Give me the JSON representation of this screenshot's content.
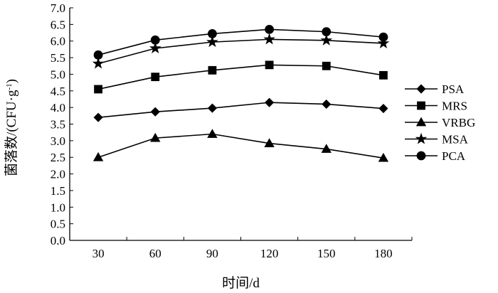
{
  "chart_data": {
    "type": "line",
    "title": "",
    "xlabel": "时间/d",
    "ylabel": "菌落数/(CFU·g⁻¹)",
    "ylabel_parts": {
      "main": "菌落数/(CFU·g",
      "sup": "-1",
      "tail": ")"
    },
    "x": [
      30,
      60,
      90,
      120,
      150,
      180
    ],
    "x_tick_labels": [
      "30",
      "60",
      "90",
      "120",
      "150",
      "180"
    ],
    "ylim": [
      0,
      7.0
    ],
    "y_tick_labels": [
      "0.0",
      "0.5",
      "1.0",
      "1.5",
      "2.0",
      "2.5",
      "3.0",
      "3.5",
      "4.0",
      "4.5",
      "5.0",
      "5.5",
      "6.0",
      "6.5",
      "7.0"
    ],
    "grid": false,
    "legend_position": "right",
    "series": [
      {
        "name": "PSA",
        "marker": "diamond",
        "values": [
          3.7,
          3.87,
          3.98,
          4.15,
          4.1,
          3.97
        ]
      },
      {
        "name": "MRS",
        "marker": "square",
        "values": [
          4.55,
          4.92,
          5.12,
          5.28,
          5.25,
          4.97
        ]
      },
      {
        "name": "VRBG",
        "marker": "triangle",
        "values": [
          2.5,
          3.08,
          3.2,
          2.92,
          2.75,
          2.48
        ]
      },
      {
        "name": "MSA",
        "marker": "star",
        "values": [
          5.32,
          5.78,
          5.97,
          6.05,
          6.02,
          5.93
        ]
      },
      {
        "name": "PCA",
        "marker": "circle",
        "values": [
          5.58,
          6.03,
          6.22,
          6.35,
          6.28,
          6.12
        ]
      }
    ],
    "colors": {
      "line": "#000000",
      "marker": "#000000",
      "background": "#ffffff"
    }
  }
}
